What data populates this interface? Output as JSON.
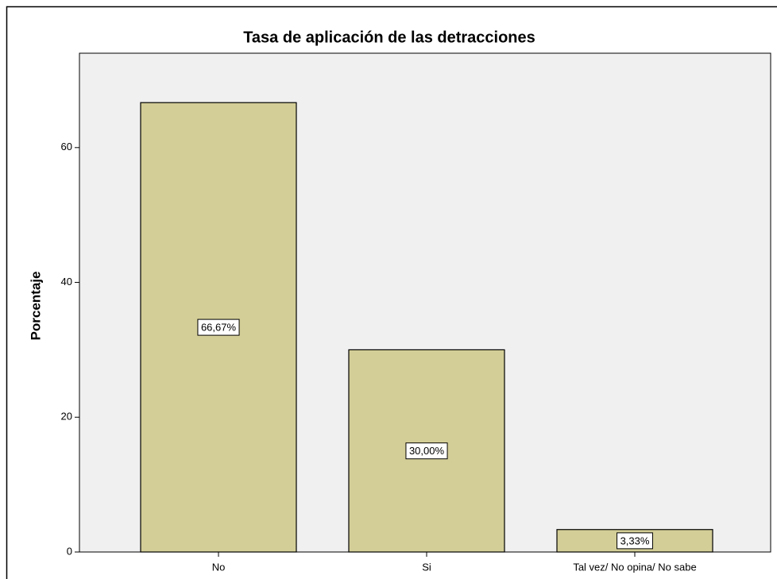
{
  "chart_data": {
    "type": "bar",
    "title": "Tasa de aplicación de las detracciones",
    "y_label": "Porcentaje",
    "categories": [
      "No",
      "Si",
      "Tal vez/ No opina/ No sabe"
    ],
    "values": [
      66.67,
      30,
      3.33
    ],
    "value_labels": [
      "66,67%",
      "30,00%",
      "3,33%"
    ],
    "color": "#d3ce97",
    "ylim": [
      0,
      74
    ],
    "yticks": [
      0,
      20,
      40,
      60
    ],
    "grid": false
  }
}
